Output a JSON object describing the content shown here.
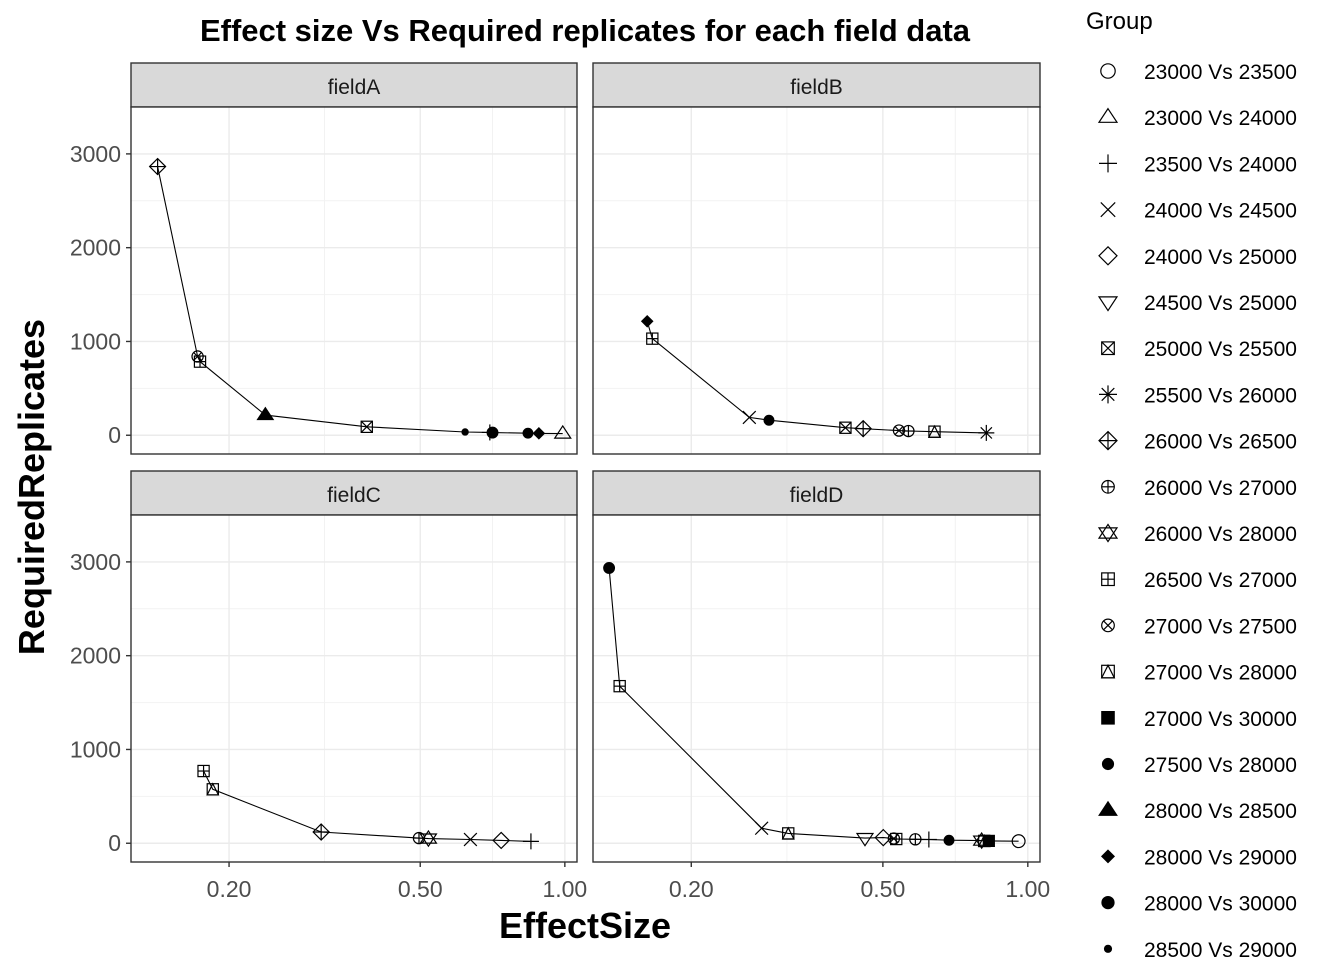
{
  "chart_data": {
    "type": "scatter",
    "title": "Effect size Vs Required replicates for each field data",
    "xlabel": "EffectSize",
    "ylabel": "RequiredReplicates",
    "x_scale": "log10",
    "xlim": [
      0.125,
      1.06
    ],
    "ylim": [
      -200,
      3500
    ],
    "x_ticks": [
      0.2,
      0.5,
      1.0
    ],
    "x_tick_labels": [
      "0.20",
      "0.50",
      "1.00"
    ],
    "y_ticks": [
      0,
      1000,
      2000,
      3000
    ],
    "y_tick_labels": [
      "0",
      "1000",
      "2000",
      "3000"
    ],
    "grid": true,
    "legend": {
      "title": "Group",
      "position": "right",
      "entries": [
        {
          "label": "23000 Vs 23500",
          "shape": "open-circle"
        },
        {
          "label": "23000 Vs 24000",
          "shape": "open-triangle"
        },
        {
          "label": "23500 Vs 24000",
          "shape": "plus"
        },
        {
          "label": "24000 Vs 24500",
          "shape": "cross"
        },
        {
          "label": "24000 Vs 25000",
          "shape": "open-diamond"
        },
        {
          "label": "24500 Vs 25000",
          "shape": "open-triangle-down"
        },
        {
          "label": "25000 Vs 25500",
          "shape": "square-cross"
        },
        {
          "label": "25500 Vs 26000",
          "shape": "asterisk"
        },
        {
          "label": "26000 Vs 26500",
          "shape": "diamond-plus"
        },
        {
          "label": "26000 Vs 27000",
          "shape": "circle-plus"
        },
        {
          "label": "26000 Vs 28000",
          "shape": "star-of-david"
        },
        {
          "label": "26500 Vs 27000",
          "shape": "square-plus"
        },
        {
          "label": "27000 Vs 27500",
          "shape": "circle-cross"
        },
        {
          "label": "27000 Vs 28000",
          "shape": "square-triangle"
        },
        {
          "label": "27000 Vs 30000",
          "shape": "filled-square"
        },
        {
          "label": "27500 Vs 28000",
          "shape": "filled-circle"
        },
        {
          "label": "28000 Vs 28500",
          "shape": "filled-triangle"
        },
        {
          "label": "28000 Vs 29000",
          "shape": "filled-diamond"
        },
        {
          "label": "28000 Vs 30000",
          "shape": "big-filled-circle"
        },
        {
          "label": "28500 Vs 29000",
          "shape": "small-filled-circle"
        }
      ]
    },
    "facets": [
      {
        "name": "fieldA",
        "points": [
          {
            "group": "26000 Vs 26500",
            "x": 0.142,
            "y": 2865
          },
          {
            "group": "27000 Vs 27500",
            "x": 0.172,
            "y": 840
          },
          {
            "group": "26500 Vs 27000",
            "x": 0.174,
            "y": 785
          },
          {
            "group": "28000 Vs 28500",
            "x": 0.238,
            "y": 215
          },
          {
            "group": "25000 Vs 25500",
            "x": 0.387,
            "y": 90
          },
          {
            "group": "28500 Vs 29000",
            "x": 0.62,
            "y": 35
          },
          {
            "group": "23500 Vs 24000",
            "x": 0.698,
            "y": 30
          },
          {
            "group": "28000 Vs 30000",
            "x": 0.707,
            "y": 28
          },
          {
            "group": "27500 Vs 28000",
            "x": 0.838,
            "y": 22
          },
          {
            "group": "28000 Vs 29000",
            "x": 0.883,
            "y": 20
          },
          {
            "group": "23000 Vs 24000",
            "x": 0.99,
            "y": 18
          }
        ]
      },
      {
        "name": "fieldB",
        "points": [
          {
            "group": "28000 Vs 29000",
            "x": 0.162,
            "y": 1215
          },
          {
            "group": "26500 Vs 27000",
            "x": 0.166,
            "y": 1030
          },
          {
            "group": "24000 Vs 24500",
            "x": 0.264,
            "y": 190
          },
          {
            "group": "27500 Vs 28000",
            "x": 0.29,
            "y": 160
          },
          {
            "group": "25000 Vs 25500",
            "x": 0.418,
            "y": 80
          },
          {
            "group": "26000 Vs 26500",
            "x": 0.455,
            "y": 70
          },
          {
            "group": "27000 Vs 27500",
            "x": 0.54,
            "y": 50
          },
          {
            "group": "26000 Vs 27000",
            "x": 0.565,
            "y": 45
          },
          {
            "group": "27000 Vs 28000",
            "x": 0.64,
            "y": 38
          },
          {
            "group": "25500 Vs 26000",
            "x": 0.82,
            "y": 25
          }
        ]
      },
      {
        "name": "fieldC",
        "points": [
          {
            "group": "26500 Vs 27000",
            "x": 0.177,
            "y": 770
          },
          {
            "group": "27000 Vs 28000",
            "x": 0.185,
            "y": 575
          },
          {
            "group": "26000 Vs 26500",
            "x": 0.311,
            "y": 120
          },
          {
            "group": "26000 Vs 27000",
            "x": 0.497,
            "y": 55
          },
          {
            "group": "26000 Vs 28000",
            "x": 0.52,
            "y": 50
          },
          {
            "group": "24000 Vs 24500",
            "x": 0.636,
            "y": 40
          },
          {
            "group": "24000 Vs 25000",
            "x": 0.737,
            "y": 30
          },
          {
            "group": "23500 Vs 24000",
            "x": 0.85,
            "y": 20
          }
        ]
      },
      {
        "name": "fieldD",
        "points": [
          {
            "group": "28000 Vs 30000",
            "x": 0.135,
            "y": 2935
          },
          {
            "group": "26500 Vs 27000",
            "x": 0.142,
            "y": 1675
          },
          {
            "group": "24000 Vs 24500",
            "x": 0.28,
            "y": 160
          },
          {
            "group": "27000 Vs 28000",
            "x": 0.318,
            "y": 105
          },
          {
            "group": "24500 Vs 25000",
            "x": 0.459,
            "y": 55
          },
          {
            "group": "24000 Vs 25000",
            "x": 0.501,
            "y": 60
          },
          {
            "group": "27000 Vs 27500",
            "x": 0.527,
            "y": 50
          },
          {
            "group": "26500 Vs 27000",
            "x": 0.533,
            "y": 45
          },
          {
            "group": "26000 Vs 27000",
            "x": 0.584,
            "y": 42
          },
          {
            "group": "23500 Vs 24000",
            "x": 0.623,
            "y": 40
          },
          {
            "group": "27500 Vs 28000",
            "x": 0.686,
            "y": 32
          },
          {
            "group": "26000 Vs 28000",
            "x": 0.802,
            "y": 28
          },
          {
            "group": "27000 Vs 28000",
            "x": 0.812,
            "y": 25
          },
          {
            "group": "27000 Vs 30000",
            "x": 0.83,
            "y": 25
          },
          {
            "group": "23000 Vs 23500",
            "x": 0.957,
            "y": 22
          }
        ]
      }
    ]
  }
}
